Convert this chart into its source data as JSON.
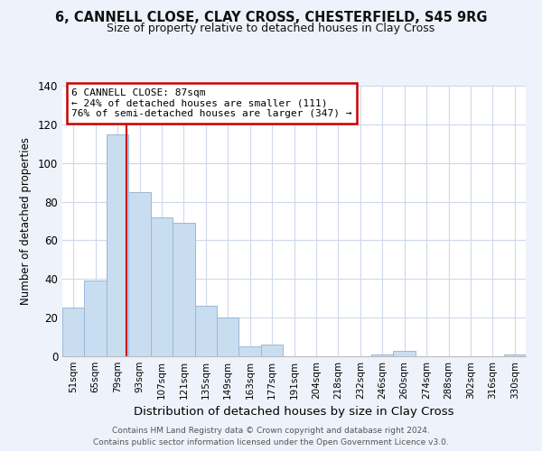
{
  "title": "6, CANNELL CLOSE, CLAY CROSS, CHESTERFIELD, S45 9RG",
  "subtitle": "Size of property relative to detached houses in Clay Cross",
  "xlabel": "Distribution of detached houses by size in Clay Cross",
  "ylabel": "Number of detached properties",
  "bar_color": "#c8ddf0",
  "bar_edge_color": "#9ab8d8",
  "tick_labels": [
    "51sqm",
    "65sqm",
    "79sqm",
    "93sqm",
    "107sqm",
    "121sqm",
    "135sqm",
    "149sqm",
    "163sqm",
    "177sqm",
    "191sqm",
    "204sqm",
    "218sqm",
    "232sqm",
    "246sqm",
    "260sqm",
    "274sqm",
    "288sqm",
    "302sqm",
    "316sqm",
    "330sqm"
  ],
  "bar_heights": [
    25,
    39,
    115,
    85,
    72,
    69,
    26,
    20,
    5,
    6,
    0,
    0,
    0,
    0,
    1,
    3,
    0,
    0,
    0,
    0,
    1
  ],
  "ylim": [
    0,
    140
  ],
  "yticks": [
    0,
    20,
    40,
    60,
    80,
    100,
    120,
    140
  ],
  "property_line_x": 2.42,
  "annotation_box_text": "6 CANNELL CLOSE: 87sqm\n← 24% of detached houses are smaller (111)\n76% of semi-detached houses are larger (347) →",
  "footer_line1": "Contains HM Land Registry data © Crown copyright and database right 2024.",
  "footer_line2": "Contains public sector information licensed under the Open Government Licence v3.0.",
  "background_color": "#eef2fa",
  "plot_bg_color": "#ffffff",
  "grid_color": "#d0d8ec",
  "annotation_box_color": "#ffffff",
  "annotation_box_edge_color": "#cc0000",
  "property_line_color": "#cc0000"
}
